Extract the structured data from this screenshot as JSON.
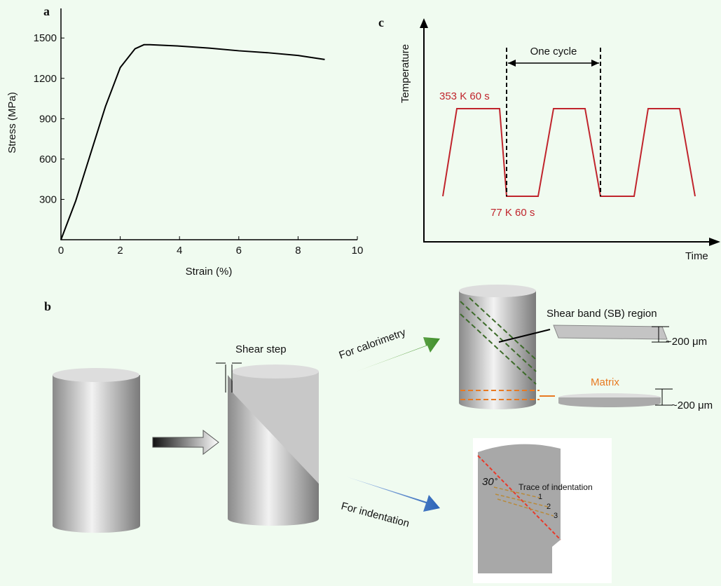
{
  "chart_data": {
    "type": "line",
    "label": "a",
    "x_label": "Strain (%)",
    "y_label": "Stress (MPa)",
    "x": [
      0,
      0.5,
      1,
      1.5,
      2,
      2.5,
      2.8,
      3,
      4,
      5,
      6,
      7,
      8,
      8.9
    ],
    "values": [
      0,
      290,
      640,
      990,
      1280,
      1420,
      1450,
      1450,
      1440,
      1425,
      1405,
      1390,
      1370,
      1340
    ],
    "color": "#000000",
    "xlim": [
      0,
      10
    ],
    "ylim": [
      0,
      1720
    ],
    "xticks": [
      0,
      2,
      4,
      6,
      8,
      10
    ],
    "yticks": [
      300,
      600,
      900,
      1200,
      1500
    ]
  },
  "panel_c": {
    "label": "c",
    "y_label": "Temperature",
    "x_label": "Time",
    "cycle": "One cycle",
    "hot": "353 K 60 s",
    "cold": "77 K 60 s"
  },
  "panel_b": {
    "label": "b",
    "shear_step": "Shear step",
    "calorimetry": "For calorimetry",
    "indentation": "For indentation",
    "sb_region": "Shear band (SB) region",
    "sb_thickness": "~200 μm",
    "matrix": "Matrix",
    "matrix_thickness": "~200 μm",
    "angle": "30",
    "degree": "°",
    "trace": "Trace of indentation",
    "traces": [
      "1",
      "2",
      "3"
    ]
  }
}
